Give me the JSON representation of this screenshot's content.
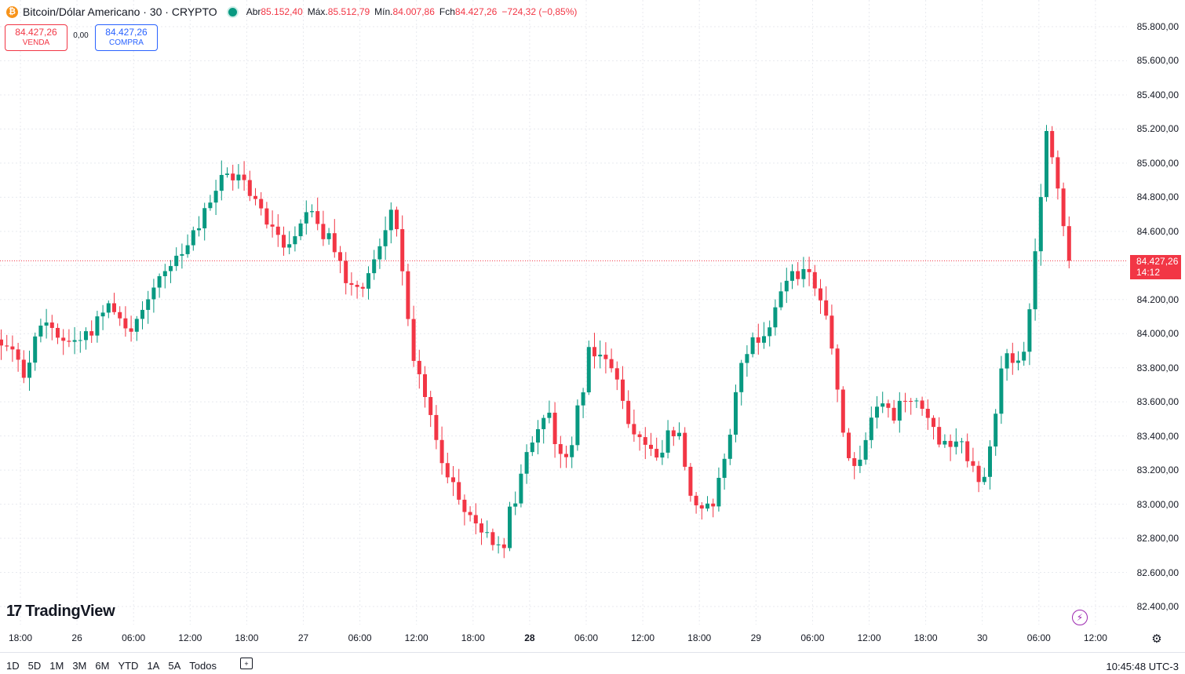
{
  "header": {
    "coin_icon": "₿",
    "title": "Bitcoin/Dólar Americano · 30 · CRYPTO",
    "ohlc": [
      {
        "label": "Abr",
        "value": "85.152,40"
      },
      {
        "label": "Máx.",
        "value": "85.512,79"
      },
      {
        "label": "Mín.",
        "value": "84.007,86"
      },
      {
        "label": "Fch",
        "value": "84.427,26"
      }
    ],
    "change": "−724,32 (−0,85%)"
  },
  "trade": {
    "sell_price": "84.427,26",
    "sell_label": "VENDA",
    "spread": "0,00",
    "buy_price": "84.427,26",
    "buy_label": "COMPRA"
  },
  "price_tag": {
    "price": "84.427,26",
    "countdown": "14:12"
  },
  "logo_text": "TradingView",
  "colors": {
    "up": "#089981",
    "down": "#f23645",
    "grid": "#e8eaef"
  },
  "bottom": {
    "ranges": [
      "1D",
      "5D",
      "1M",
      "3M",
      "6M",
      "YTD",
      "1A",
      "5A",
      "Todos"
    ],
    "clock": "10:45:48 UTC-3"
  },
  "chart_data": {
    "type": "candlestick",
    "interval_minutes": 30,
    "last_price": 84427.26,
    "y_ticks": [
      85800,
      85600,
      85400,
      85200,
      85000,
      84800,
      84600,
      84400,
      84200,
      84000,
      83800,
      83600,
      83400,
      83200,
      83000,
      82800,
      82600,
      82400
    ],
    "y_tick_labels": [
      "85.800,00",
      "85.600,00",
      "85.400,00",
      "85.200,00",
      "85.000,00",
      "84.800,00",
      "84.600,00",
      "84.400,00",
      "84.200,00",
      "84.000,00",
      "83.800,00",
      "83.600,00",
      "83.400,00",
      "83.200,00",
      "83.000,00",
      "82.800,00",
      "82.600,00",
      "82.400,00"
    ],
    "ylim": [
      82330,
      85890
    ],
    "x_ticks": [
      {
        "label": "18:00",
        "bold": false
      },
      {
        "label": "26",
        "bold": false
      },
      {
        "label": "06:00",
        "bold": false
      },
      {
        "label": "12:00",
        "bold": false
      },
      {
        "label": "18:00",
        "bold": false
      },
      {
        "label": "27",
        "bold": false
      },
      {
        "label": "06:00",
        "bold": false
      },
      {
        "label": "12:00",
        "bold": false
      },
      {
        "label": "18:00",
        "bold": false
      },
      {
        "label": "28",
        "bold": true
      },
      {
        "label": "06:00",
        "bold": false
      },
      {
        "label": "12:00",
        "bold": false
      },
      {
        "label": "18:00",
        "bold": false
      },
      {
        "label": "29",
        "bold": false
      },
      {
        "label": "06:00",
        "bold": false
      },
      {
        "label": "12:00",
        "bold": false
      },
      {
        "label": "18:00",
        "bold": false
      },
      {
        "label": "30",
        "bold": false
      },
      {
        "label": "06:00",
        "bold": false
      },
      {
        "label": "12:00",
        "bold": false
      }
    ],
    "anchors": [
      [
        83900,
        84000
      ],
      [
        83700,
        83850
      ],
      [
        84050,
        84120
      ],
      [
        83900,
        84000
      ],
      [
        83950,
        84050
      ],
      [
        84150,
        84250
      ],
      [
        83950,
        84050
      ],
      [
        84250,
        84350
      ],
      [
        84350,
        84450
      ],
      [
        84550,
        84650
      ],
      [
        84850,
        84950
      ],
      [
        84900,
        84950
      ],
      [
        84650,
        84750
      ],
      [
        84450,
        84600
      ],
      [
        84700,
        84800
      ],
      [
        84500,
        84600
      ],
      [
        84200,
        84350
      ],
      [
        84300,
        84450
      ],
      [
        84750,
        84780
      ],
      [
        83750,
        83850
      ],
      [
        83300,
        83400
      ],
      [
        83000,
        83050
      ],
      [
        82800,
        82850
      ],
      [
        82700,
        82850
      ],
      [
        83150,
        83300
      ],
      [
        83500,
        83600
      ],
      [
        83050,
        83350
      ],
      [
        83900,
        84000
      ],
      [
        83700,
        83850
      ],
      [
        83400,
        83500
      ],
      [
        83250,
        83300
      ],
      [
        83400,
        83550
      ],
      [
        82800,
        82950
      ],
      [
        83050,
        83200
      ],
      [
        83850,
        83950
      ],
      [
        83950,
        84050
      ],
      [
        84250,
        84350
      ],
      [
        84350,
        84450
      ],
      [
        83950,
        84050
      ],
      [
        83050,
        83200
      ],
      [
        83500,
        83600
      ],
      [
        83450,
        83600
      ],
      [
        83600,
        83650
      ],
      [
        83350,
        83450
      ],
      [
        83300,
        83400
      ],
      [
        83000,
        83150
      ],
      [
        83800,
        83900
      ],
      [
        83850,
        83900
      ],
      [
        85200,
        85250
      ],
      [
        84427.26,
        84427.26
      ]
    ]
  }
}
